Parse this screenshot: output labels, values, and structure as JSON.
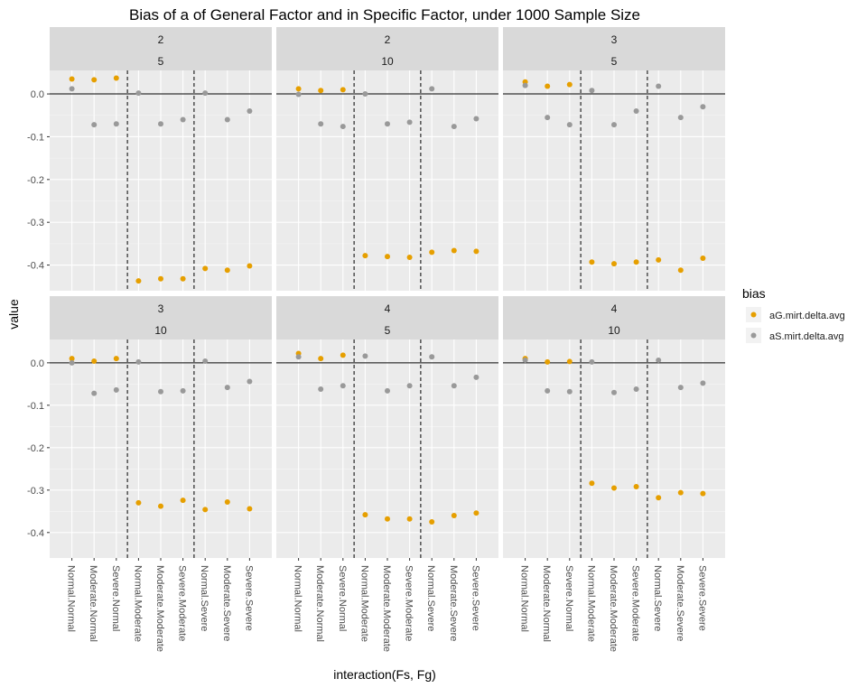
{
  "chart_data": {
    "type": "scatter",
    "title": "Bias of a of General Factor and in Specific Factor, under 1000 Sample Size",
    "xlabel": "interaction(Fs, Fg)",
    "ylabel": "value",
    "ylim": [
      -0.46,
      0.055
    ],
    "y_ticks": [
      0.0,
      -0.1,
      -0.2,
      -0.3,
      -0.4
    ],
    "y_tick_labels": [
      "0.0",
      "-0.1",
      "-0.2",
      "-0.3",
      "-0.4"
    ],
    "categories": [
      "Normal.Normal",
      "Moderate.Normal",
      "Severe.Normal",
      "Normal.Moderate",
      "Moderate.Moderate",
      "Severe.Moderate",
      "Normal.Severe",
      "Moderate.Severe",
      "Severe.Severe"
    ],
    "reference_line_y": 0,
    "vertical_dashed_lines_between": [
      [
        3,
        4
      ],
      [
        6,
        7
      ]
    ],
    "legend": {
      "title": "bias",
      "position": "right",
      "entries": [
        {
          "name": "aG.mirt.delta.avg",
          "color": "#E69F00"
        },
        {
          "name": "aS.mirt.delta.avg",
          "color": "#999999"
        }
      ]
    },
    "panels": [
      {
        "strip_top": "2",
        "strip_bottom": "5",
        "series": [
          {
            "name": "aG.mirt.delta.avg",
            "values": [
              0.035,
              0.033,
              0.037,
              -0.437,
              -0.432,
              -0.432,
              -0.408,
              -0.412,
              -0.402
            ]
          },
          {
            "name": "aS.mirt.delta.avg",
            "values": [
              0.012,
              -0.072,
              -0.07,
              0.002,
              -0.07,
              -0.06,
              0.002,
              -0.06,
              -0.04
            ]
          }
        ]
      },
      {
        "strip_top": "2",
        "strip_bottom": "10",
        "series": [
          {
            "name": "aG.mirt.delta.avg",
            "values": [
              0.012,
              0.008,
              0.01,
              -0.378,
              -0.38,
              -0.382,
              -0.37,
              -0.366,
              -0.368
            ]
          },
          {
            "name": "aS.mirt.delta.avg",
            "values": [
              -0.001,
              -0.07,
              -0.076,
              0.0,
              -0.07,
              -0.066,
              0.012,
              -0.076,
              -0.058
            ]
          }
        ]
      },
      {
        "strip_top": "3",
        "strip_bottom": "5",
        "series": [
          {
            "name": "aG.mirt.delta.avg",
            "values": [
              0.028,
              0.018,
              0.022,
              -0.393,
              -0.397,
              -0.393,
              -0.388,
              -0.412,
              -0.384
            ]
          },
          {
            "name": "aS.mirt.delta.avg",
            "values": [
              0.02,
              -0.055,
              -0.072,
              0.008,
              -0.072,
              -0.04,
              0.018,
              -0.055,
              -0.03
            ]
          }
        ]
      },
      {
        "strip_top": "3",
        "strip_bottom": "10",
        "series": [
          {
            "name": "aG.mirt.delta.avg",
            "values": [
              0.01,
              0.004,
              0.01,
              -0.33,
              -0.338,
              -0.324,
              -0.346,
              -0.328,
              -0.344
            ]
          },
          {
            "name": "aS.mirt.delta.avg",
            "values": [
              0.0,
              -0.072,
              -0.064,
              0.002,
              -0.068,
              -0.066,
              0.004,
              -0.058,
              -0.044
            ]
          }
        ]
      },
      {
        "strip_top": "4",
        "strip_bottom": "5",
        "series": [
          {
            "name": "aG.mirt.delta.avg",
            "values": [
              0.022,
              0.01,
              0.018,
              -0.358,
              -0.368,
              -0.368,
              -0.375,
              -0.36,
              -0.354
            ]
          },
          {
            "name": "aS.mirt.delta.avg",
            "values": [
              0.014,
              -0.062,
              -0.054,
              0.016,
              -0.066,
              -0.054,
              0.014,
              -0.054,
              -0.034
            ]
          }
        ]
      },
      {
        "strip_top": "4",
        "strip_bottom": "10",
        "series": [
          {
            "name": "aG.mirt.delta.avg",
            "values": [
              0.01,
              0.002,
              0.003,
              -0.284,
              -0.295,
              -0.292,
              -0.318,
              -0.306,
              -0.308
            ]
          },
          {
            "name": "aS.mirt.delta.avg",
            "values": [
              0.006,
              -0.066,
              -0.068,
              0.002,
              -0.07,
              -0.062,
              0.006,
              -0.058,
              -0.048
            ]
          }
        ]
      }
    ]
  }
}
